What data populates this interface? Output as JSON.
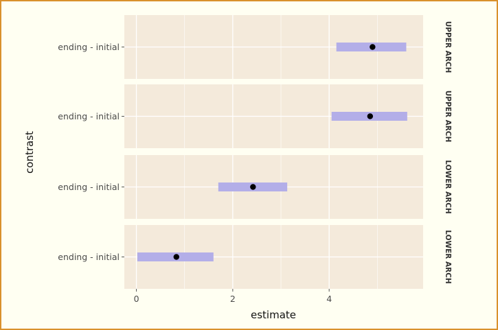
{
  "chart_data": {
    "type": "scatter",
    "xlabel": "estimate",
    "ylabel": "contrast",
    "xlim": [
      -0.25,
      5.95
    ],
    "x_ticks": [
      0,
      2,
      4
    ],
    "grid": true,
    "colors": {
      "panel": "#f4eadb",
      "grid": "#ffffff",
      "interval": "#b3aee8",
      "point": "#000000"
    },
    "panels": [
      {
        "strip": "UPPER ARCH",
        "category": "ending - initial",
        "estimate": 4.9,
        "lower": 4.15,
        "upper": 5.6
      },
      {
        "strip": "UPPER ARCH",
        "category": "ending - initial",
        "estimate": 4.85,
        "lower": 4.05,
        "upper": 5.62
      },
      {
        "strip": "LOWER ARCH",
        "category": "ending - initial",
        "estimate": 2.42,
        "lower": 1.7,
        "upper": 3.13
      },
      {
        "strip": "LOWER ARCH",
        "category": "ending - initial",
        "estimate": 0.83,
        "lower": 0.02,
        "upper": 1.6
      }
    ]
  }
}
